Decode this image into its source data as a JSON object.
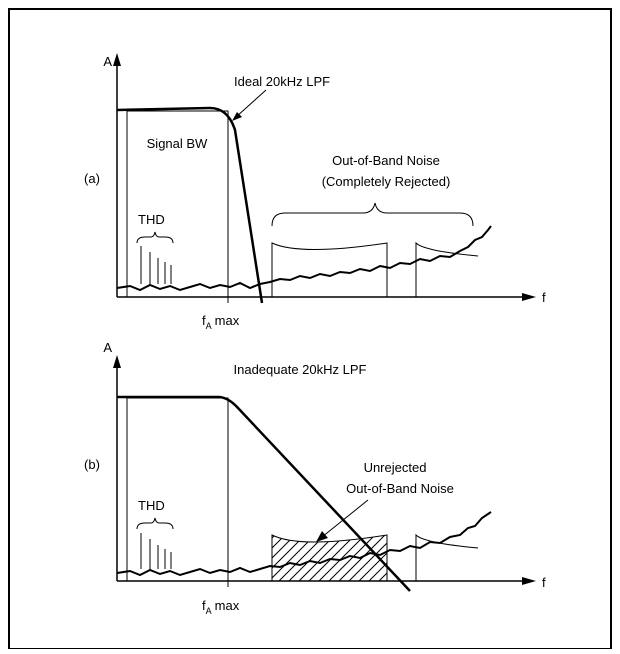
{
  "panel_a": {
    "label": "(a)",
    "y_axis": "A",
    "x_axis": "f",
    "filter_label": "Ideal 20kHz LPF",
    "signal_label": "Signal BW",
    "noise_label_line1": "Out-of-Band Noise",
    "noise_label_line2": "(Completely Rejected)",
    "thd_label": "THD",
    "tick_main": "f",
    "tick_sub": "A",
    "tick_suffix": "max"
  },
  "panel_b": {
    "label": "(b)",
    "y_axis": "A",
    "x_axis": "f",
    "filter_label": "Inadequate 20kHz LPF",
    "noise_label_line1": "Unrejected",
    "noise_label_line2": "Out-of-Band Noise",
    "thd_label": "THD",
    "tick_main": "f",
    "tick_sub": "A",
    "tick_suffix": "max"
  },
  "colors": {
    "ink": "#000000",
    "background": "#ffffff"
  }
}
